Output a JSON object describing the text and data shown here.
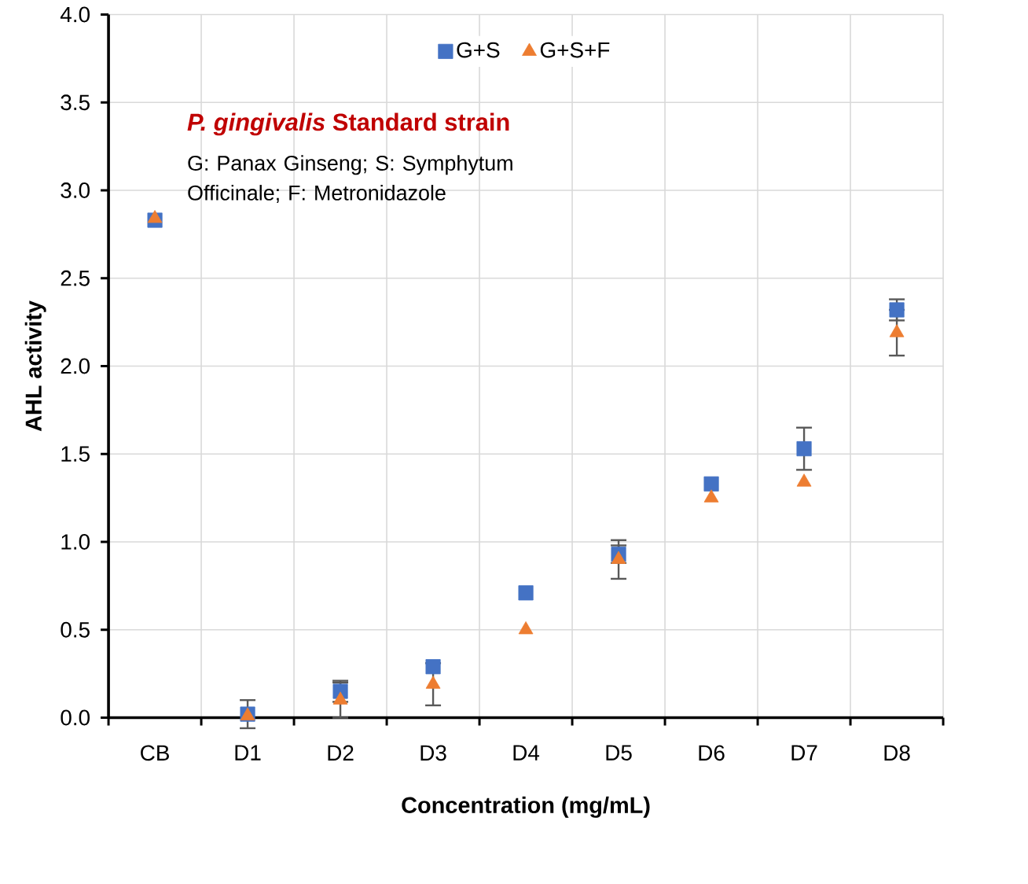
{
  "chart_data": {
    "type": "scatter",
    "xlabel": "Concentration (mg/mL)",
    "ylabel": "AHL activity",
    "categories": [
      "CB",
      "D1",
      "D2",
      "D3",
      "D4",
      "D5",
      "D6",
      "D7",
      "D8"
    ],
    "series": [
      {
        "name": "G+S",
        "color": "#4472c4",
        "marker": "square",
        "values": [
          2.83,
          0.02,
          0.15,
          0.29,
          0.71,
          0.93,
          1.33,
          1.53,
          2.32
        ],
        "errors": [
          null,
          0.08,
          0.06,
          null,
          null,
          0.05,
          null,
          0.12,
          0.06
        ]
      },
      {
        "name": "G+S+F",
        "color": "#ed7d31",
        "marker": "triangle",
        "values": [
          2.84,
          0.01,
          0.1,
          0.19,
          0.5,
          0.9,
          1.25,
          1.34,
          2.19
        ],
        "errors": [
          null,
          null,
          0.1,
          0.12,
          null,
          0.11,
          null,
          null,
          0.13
        ]
      }
    ],
    "ylim": [
      0,
      4
    ],
    "yticks": [
      {
        "value": 0,
        "label": "0.0"
      },
      {
        "value": 0.5,
        "label": "0.5"
      },
      {
        "value": 1,
        "label": "1.0"
      },
      {
        "value": 1.5,
        "label": "1.5"
      },
      {
        "value": 2,
        "label": "2.0"
      },
      {
        "value": 2.5,
        "label": "2.5"
      },
      {
        "value": 3,
        "label": "3.0"
      },
      {
        "value": 3.5,
        "label": "3.5"
      },
      {
        "value": 4,
        "label": "4.0"
      }
    ],
    "grid": true,
    "legend": "top",
    "annotations": [
      "*P. gingivalis* Standard strain",
      "G: Panax Ginseng; S: Symphytum Officinale; F: Metronidazole"
    ]
  }
}
